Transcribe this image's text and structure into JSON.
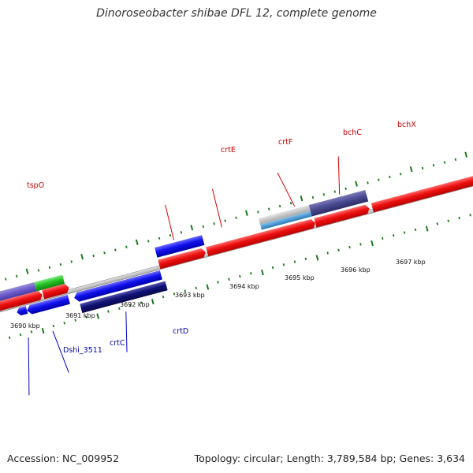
{
  "title": "Dinoroseobacter shibae DFL 12, complete genome",
  "footer": {
    "accession": "Accession: NC_009952",
    "topology": "Topology: circular; Length: 3,789,584 bp; Genes: 3,634"
  },
  "colors": {
    "forward_gene": "#ee1111",
    "reverse_gene": "#1111ee",
    "dark_reverse_gene": "#101077",
    "forward_label": "#cc0000",
    "reverse_label": "#0000aa",
    "tick": "#1a7a1a",
    "backbone": "#888888"
  },
  "axis": {
    "unit": "kbp",
    "tick_labels": [
      "3690 kbp",
      "3691 kbp",
      "3692 kbp",
      "3693 kbp",
      "3694 kbp",
      "3695 kbp",
      "3696 kbp",
      "3697 kbp"
    ]
  },
  "gene_labels": {
    "forward": [
      "tspO",
      "crtE",
      "crtF",
      "bchC",
      "bchX"
    ],
    "reverse": [
      "Dshi_3511",
      "crtC",
      "crtD"
    ]
  }
}
